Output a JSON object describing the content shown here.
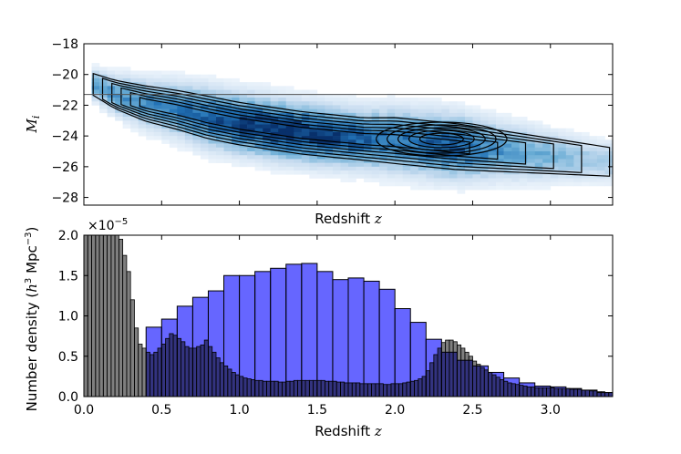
{
  "chart_data": [
    {
      "type": "heatmap",
      "panel": "top",
      "xlabel": "Redshift",
      "xlabel_var": "z",
      "ylabel_var": "M",
      "ylabel_sub": "i",
      "xlim": [
        0,
        3.4
      ],
      "ylim": [
        -18,
        -28.5
      ],
      "y_ticks": [
        "−18",
        "−20",
        "−22",
        "−24",
        "−26",
        "−28"
      ],
      "y_tick_values": [
        -18,
        -20,
        -22,
        -24,
        -26,
        -28
      ],
      "horizontal_line_value": -21.3,
      "colormap": [
        "#f7fbff",
        "#c6dbef",
        "#6baed6",
        "#2171b5",
        "#08306b"
      ],
      "density_ridge": {
        "z": [
          0.05,
          0.2,
          0.4,
          0.6,
          0.8,
          1.0,
          1.2,
          1.4,
          1.6,
          1.8,
          2.0,
          2.2,
          2.4,
          2.6,
          2.8,
          3.0,
          3.2,
          3.4
        ],
        "M_center": [
          -20.6,
          -21.3,
          -21.9,
          -22.3,
          -22.8,
          -23.2,
          -23.5,
          -23.8,
          -24.0,
          -24.2,
          -24.3,
          -24.5,
          -24.7,
          -24.9,
          -25.1,
          -25.3,
          -25.5,
          -25.7
        ],
        "M_spread": [
          0.6,
          0.8,
          1.0,
          1.1,
          1.2,
          1.2,
          1.2,
          1.2,
          1.2,
          1.2,
          1.3,
          1.3,
          1.3,
          1.2,
          1.1,
          1.0,
          0.9,
          0.8
        ]
      },
      "contour_levels": 6
    },
    {
      "type": "bar",
      "panel": "bottom",
      "xlabel": "Redshift",
      "xlabel_var": "z",
      "ylabel": "Number density",
      "ylabel_units_h": "h",
      "ylabel_units_h_exp": "3",
      "ylabel_units_mpc": "Mpc",
      "ylabel_units_mpc_exp": "−3",
      "y_scale_base": "×10",
      "y_scale_exp": "−5",
      "xlim": [
        0,
        3.4
      ],
      "ylim": [
        0,
        2.0
      ],
      "x_ticks": [
        "0.0",
        "0.5",
        "1.0",
        "1.5",
        "2.0",
        "2.5",
        "3.0"
      ],
      "x_tick_values": [
        0.0,
        0.5,
        1.0,
        1.5,
        2.0,
        2.5,
        3.0
      ],
      "y_ticks": [
        "0.0",
        "0.5",
        "1.0",
        "1.5",
        "2.0"
      ],
      "y_tick_values": [
        0.0,
        0.5,
        1.0,
        1.5,
        2.0
      ],
      "series": [
        {
          "name": "blue wide bins",
          "color": "#0000ff",
          "alpha": 0.6,
          "bin_width": 0.1,
          "bin_edges_start": [
            0.4,
            0.5,
            0.6,
            0.7,
            0.8,
            0.9,
            1.0,
            1.1,
            1.2,
            1.3,
            1.4,
            1.5,
            1.6,
            1.7,
            1.8,
            1.9,
            2.0,
            2.1,
            2.2,
            2.3,
            2.4,
            2.5,
            2.6,
            2.7,
            2.8,
            2.9,
            3.0,
            3.1,
            3.2,
            3.3
          ],
          "values": [
            0.86,
            0.96,
            1.12,
            1.23,
            1.31,
            1.5,
            1.5,
            1.55,
            1.59,
            1.64,
            1.65,
            1.55,
            1.45,
            1.47,
            1.43,
            1.33,
            1.09,
            0.92,
            0.71,
            0.55,
            0.45,
            0.38,
            0.3,
            0.23,
            0.17,
            0.13,
            0.12,
            0.1,
            0.08,
            0.05
          ]
        },
        {
          "name": "grey narrow bins",
          "color": "#000000",
          "alpha": 0.5,
          "bin_width": 0.025,
          "bin_edges_start": [
            0.0,
            0.025,
            0.05,
            0.075,
            0.1,
            0.125,
            0.15,
            0.175,
            0.2,
            0.225,
            0.25,
            0.275,
            0.3,
            0.325,
            0.35,
            0.375,
            0.4,
            0.425,
            0.45,
            0.475,
            0.5,
            0.525,
            0.55,
            0.575,
            0.6,
            0.625,
            0.65,
            0.675,
            0.7,
            0.725,
            0.75,
            0.775,
            0.8,
            0.825,
            0.85,
            0.875,
            0.9,
            0.925,
            0.95,
            0.975,
            1.0,
            1.025,
            1.05,
            1.075,
            1.1,
            1.125,
            1.15,
            1.175,
            1.2,
            1.225,
            1.25,
            1.275,
            1.3,
            1.325,
            1.35,
            1.375,
            1.4,
            1.425,
            1.45,
            1.475,
            1.5,
            1.525,
            1.55,
            1.575,
            1.6,
            1.625,
            1.65,
            1.675,
            1.7,
            1.725,
            1.75,
            1.775,
            1.8,
            1.825,
            1.85,
            1.875,
            1.9,
            1.925,
            1.95,
            1.975,
            2.0,
            2.025,
            2.05,
            2.075,
            2.1,
            2.125,
            2.15,
            2.175,
            2.2,
            2.225,
            2.25,
            2.275,
            2.3,
            2.325,
            2.35,
            2.375,
            2.4,
            2.425,
            2.45,
            2.475,
            2.5,
            2.525,
            2.55,
            2.575,
            2.6,
            2.625,
            2.65,
            2.675,
            2.7,
            2.725,
            2.75,
            2.775,
            2.8,
            2.825,
            2.85,
            2.875,
            2.9,
            2.925,
            2.95,
            2.975,
            3.0,
            3.025,
            3.05,
            3.075,
            3.1,
            3.125,
            3.15,
            3.175,
            3.2,
            3.225,
            3.25,
            3.275,
            3.3,
            3.325,
            3.35,
            3.375
          ],
          "values": [
            2.0,
            2.0,
            2.0,
            2.0,
            2.0,
            2.0,
            2.0,
            2.0,
            2.0,
            1.95,
            1.75,
            1.55,
            1.2,
            0.85,
            0.65,
            0.6,
            0.55,
            0.52,
            0.55,
            0.6,
            0.65,
            0.72,
            0.78,
            0.76,
            0.72,
            0.68,
            0.62,
            0.6,
            0.6,
            0.62,
            0.64,
            0.7,
            0.62,
            0.55,
            0.48,
            0.42,
            0.38,
            0.34,
            0.3,
            0.27,
            0.25,
            0.23,
            0.22,
            0.21,
            0.2,
            0.2,
            0.19,
            0.19,
            0.19,
            0.19,
            0.18,
            0.18,
            0.19,
            0.19,
            0.2,
            0.2,
            0.2,
            0.2,
            0.2,
            0.2,
            0.2,
            0.2,
            0.19,
            0.19,
            0.19,
            0.18,
            0.18,
            0.17,
            0.17,
            0.17,
            0.17,
            0.16,
            0.16,
            0.16,
            0.16,
            0.16,
            0.16,
            0.15,
            0.15,
            0.16,
            0.16,
            0.16,
            0.17,
            0.18,
            0.19,
            0.2,
            0.22,
            0.25,
            0.32,
            0.42,
            0.52,
            0.6,
            0.67,
            0.7,
            0.7,
            0.68,
            0.64,
            0.6,
            0.55,
            0.5,
            0.44,
            0.4,
            0.36,
            0.33,
            0.3,
            0.27,
            0.24,
            0.21,
            0.19,
            0.17,
            0.16,
            0.15,
            0.14,
            0.13,
            0.12,
            0.12,
            0.11,
            0.11,
            0.11,
            0.11,
            0.11,
            0.1,
            0.1,
            0.1,
            0.1,
            0.09,
            0.09,
            0.09,
            0.08,
            0.08,
            0.07,
            0.07,
            0.06,
            0.06,
            0.05,
            0.05
          ]
        }
      ]
    }
  ]
}
